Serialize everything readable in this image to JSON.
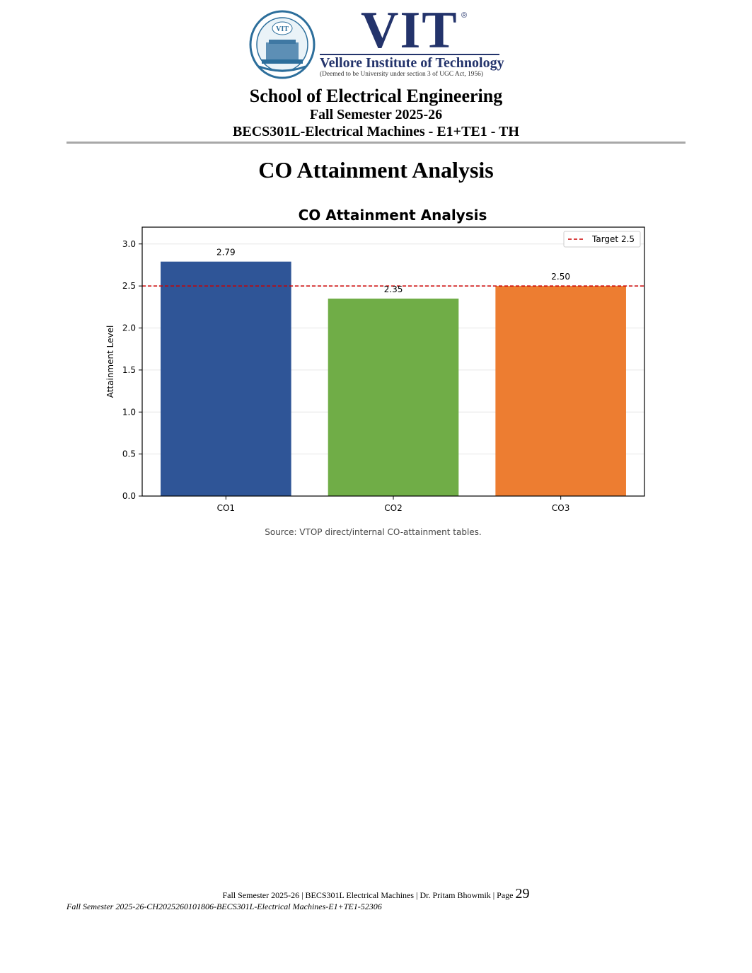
{
  "logo": {
    "seal_text": "VIT",
    "wordmark": "VIT",
    "registered": "®",
    "name": "Vellore Institute of Technology",
    "subtitle": "(Deemed to be University under section 3 of UGC Act, 1956)"
  },
  "header": {
    "school": "School of Electrical Engineering",
    "semester": "Fall Semester 2025-26",
    "course": "BECS301L-Electrical Machines - E1+TE1 - TH"
  },
  "page_title": "CO Attainment Analysis",
  "chart_data": {
    "type": "bar",
    "title": "CO Attainment Analysis",
    "xlabel": "",
    "ylabel": "Attainment Level",
    "categories": [
      "CO1",
      "CO2",
      "CO3"
    ],
    "values": [
      2.79,
      2.35,
      2.5
    ],
    "value_labels": [
      "2.79",
      "2.35",
      "2.50"
    ],
    "colors": [
      "#2f5597",
      "#70ad47",
      "#ed7d31"
    ],
    "ylim": [
      0,
      3.2
    ],
    "yticks": [
      0.0,
      0.5,
      1.0,
      1.5,
      2.0,
      2.5,
      3.0
    ],
    "ytick_labels": [
      "0.0",
      "0.5",
      "1.0",
      "1.5",
      "2.0",
      "2.5",
      "3.0"
    ],
    "grid": true,
    "target": {
      "value": 2.5,
      "label": "Target 2.5",
      "color": "#cc0000",
      "style": "dashed"
    },
    "legend_position": "top-right"
  },
  "source_note": "Source: VTOP direct/internal CO-attainment tables.",
  "footer": {
    "text": "Fall Semester 2025-26 | BECS301L Electrical Machines | Dr. Pritam Bhowmik | Page",
    "page_number": "29",
    "doc_id": "Fall Semester 2025-26-CH2025260101806-BECS301L-Electrical Machines-E1+TE1-52306"
  }
}
